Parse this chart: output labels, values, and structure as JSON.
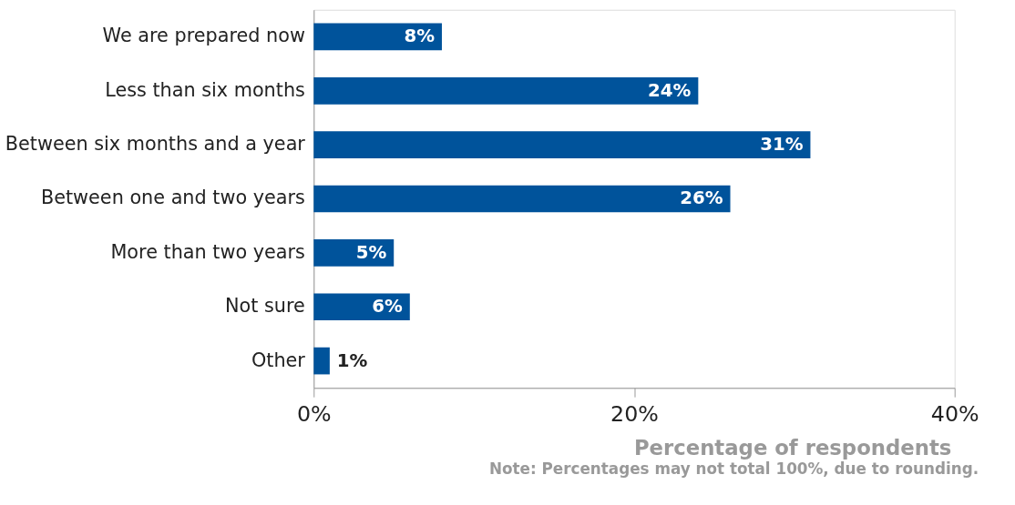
{
  "chart_data": {
    "type": "bar",
    "orientation": "horizontal",
    "categories": [
      "We are prepared now",
      "Less than six months",
      "Between six months and a year",
      "Between one and two years",
      "More than two years",
      "Not sure",
      "Other"
    ],
    "values": [
      8,
      24,
      31,
      26,
      5,
      6,
      1
    ],
    "color": "#00539b",
    "xlim": [
      0,
      40
    ],
    "xticks": [
      {
        "value": 0,
        "label": "0%"
      },
      {
        "value": 20,
        "label": "20%"
      },
      {
        "value": 40,
        "label": "40%"
      }
    ],
    "xlabel": "Percentage of respondents",
    "annotations": [
      "Note: Percentages may not total 100%, due to rounding."
    ],
    "value_labels": [
      "8%",
      "24%",
      "31%",
      "26%",
      "5%",
      "6%",
      "1%"
    ],
    "grid": false
  }
}
